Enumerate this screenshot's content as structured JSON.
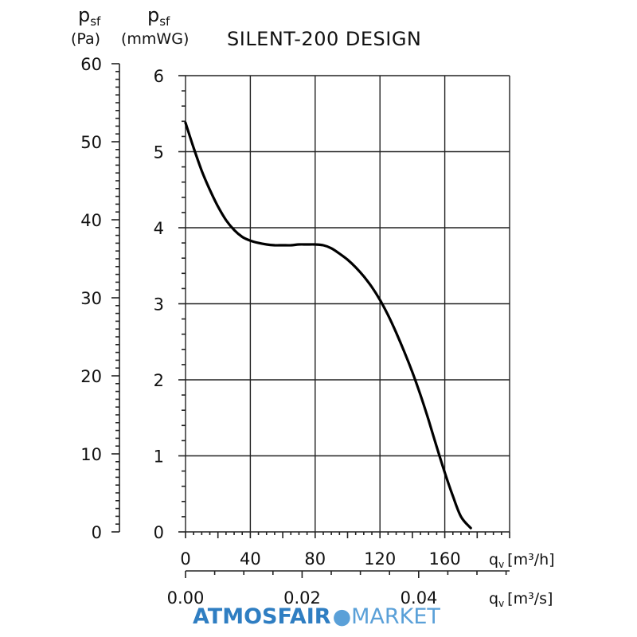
{
  "chart_data": {
    "type": "line",
    "title": "SILENT-200 DESIGN",
    "y_left_label": {
      "symbol": "p",
      "subscript": "sf",
      "unit": "(Pa)"
    },
    "y_right_label": {
      "symbol": "p",
      "subscript": "sf",
      "unit": "(mmWG)"
    },
    "x_label_primary": {
      "symbol": "q",
      "subscript": "v",
      "unit": "[m³/h]"
    },
    "x_label_secondary": {
      "symbol": "q",
      "subscript": "v",
      "unit": "[m³/s]"
    },
    "y_pa_ticks": [
      "0",
      "10",
      "20",
      "30",
      "40",
      "50",
      "60"
    ],
    "y_mmwg_ticks": [
      "0",
      "1",
      "2",
      "3",
      "4",
      "5",
      "6"
    ],
    "x_m3h_ticks": [
      "0",
      "40",
      "80",
      "120",
      "160"
    ],
    "x_m3s_ticks": [
      "0.00",
      "0.02",
      "0.04"
    ],
    "xlim_m3h": [
      0,
      200
    ],
    "ylim_mmwg": [
      0,
      6
    ],
    "grid": true,
    "series": [
      {
        "x": [
          0,
          5,
          10,
          15,
          20,
          25,
          30,
          35,
          40,
          45,
          50,
          55,
          60,
          65,
          70,
          75,
          80,
          85,
          90,
          95,
          100,
          105,
          110,
          115,
          120,
          125,
          130,
          135,
          140,
          145,
          150,
          155,
          160,
          165,
          170,
          176
        ],
        "y": [
          5.38,
          5.05,
          4.75,
          4.5,
          4.28,
          4.1,
          3.97,
          3.88,
          3.83,
          3.8,
          3.78,
          3.77,
          3.77,
          3.77,
          3.78,
          3.78,
          3.78,
          3.77,
          3.73,
          3.66,
          3.58,
          3.48,
          3.36,
          3.22,
          3.05,
          2.85,
          2.62,
          2.37,
          2.1,
          1.8,
          1.47,
          1.12,
          0.78,
          0.47,
          0.2,
          0.05
        ]
      }
    ]
  },
  "watermark": {
    "bold": "ATMOSFAIR",
    "light": "MARKET",
    "color": "#2f7ec2"
  }
}
